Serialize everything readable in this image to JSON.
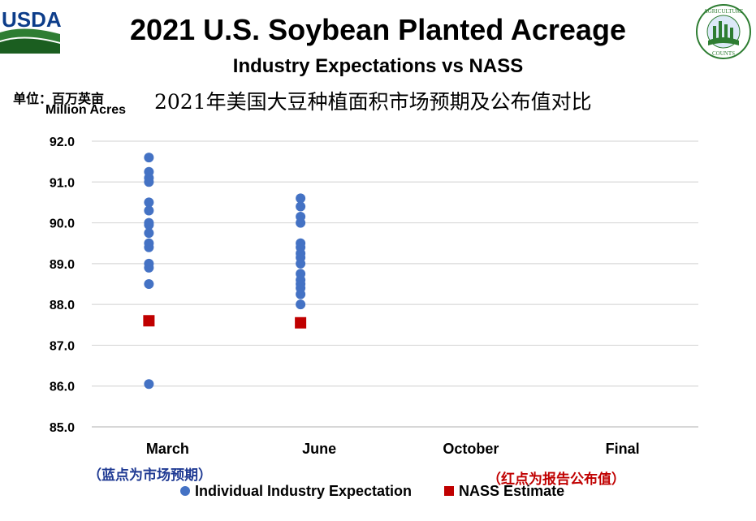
{
  "header": {
    "title": "2021 U.S. Soybean Planted Acreage",
    "subtitle": "Industry Expectations vs NASS",
    "unit_label": "单位：百万英亩",
    "cn_title": "2021年美国大豆种植面积市场预期及公布值对比",
    "usda_logo_text": "USDA",
    "seal_text_top": "AGRICULTURE",
    "seal_text_bottom": "COUNTS"
  },
  "notes": {
    "blue_note": "（蓝点为市场预期）",
    "red_note": "（红点为报告公布值）"
  },
  "colors": {
    "expectation": "#4472c4",
    "nass": "#c00000",
    "grid": "#d9d9d9"
  },
  "chart_data": {
    "type": "scatter",
    "title": "2021 U.S. Soybean Planted Acreage",
    "ylabel": "Million Acres",
    "xlabel": "",
    "categories": [
      "March",
      "June",
      "October",
      "Final"
    ],
    "ylim": [
      85.0,
      92.0
    ],
    "yticks": [
      "85.0",
      "86.0",
      "87.0",
      "88.0",
      "89.0",
      "90.0",
      "91.0",
      "92.0"
    ],
    "grid": true,
    "legend_position": "bottom",
    "series": [
      {
        "name": "Individual Industry Expectation",
        "marker": "circle",
        "points": [
          {
            "category": "March",
            "values": [
              91.6,
              91.25,
              91.1,
              91.0,
              90.5,
              90.3,
              90.0,
              89.95,
              89.75,
              89.5,
              89.4,
              89.0,
              88.9,
              88.5,
              86.05
            ]
          },
          {
            "category": "June",
            "values": [
              90.6,
              90.4,
              90.15,
              90.0,
              89.5,
              89.4,
              89.25,
              89.15,
              89.0,
              88.75,
              88.6,
              88.5,
              88.4,
              88.25,
              88.0
            ]
          }
        ]
      },
      {
        "name": "NASS Estimate",
        "marker": "square",
        "points": [
          {
            "category": "March",
            "values": [
              87.6
            ]
          },
          {
            "category": "June",
            "values": [
              87.55
            ]
          }
        ]
      }
    ]
  }
}
